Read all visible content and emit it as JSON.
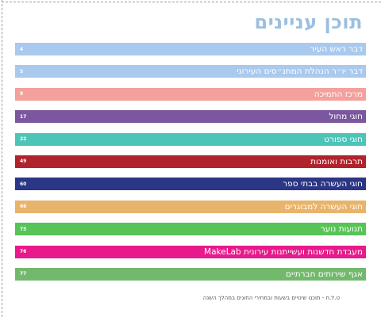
{
  "document": {
    "title": "תוכן עניינים",
    "footnote": "ט.ל.ח - תוכנו שינויים בשעות ובמחירי החוגים במהלך השנה"
  },
  "toc": [
    {
      "label": "דבר ראש העיר",
      "page": "4",
      "color": "#a9c9ee"
    },
    {
      "label": "דבר יו״ר הנהלת המתנ״סים העירוני",
      "page": "5",
      "color": "#a9c9ee"
    },
    {
      "label": "מרכז התמיכה",
      "page": "8",
      "color": "#f4a09c"
    },
    {
      "label": "חוגי מחול",
      "page": "17",
      "color": "#7b579f"
    },
    {
      "label": "חוגי ספורט",
      "page": "22",
      "color": "#4cc4b8"
    },
    {
      "label": "תרבות ואומנות",
      "page": "49",
      "color": "#b0232d"
    },
    {
      "label": "חוגי העשרה בבתי ספר",
      "page": "60",
      "color": "#2b3685"
    },
    {
      "label": "חוגי העשרה למבוגרים",
      "page": "66",
      "color": "#e8b46b"
    },
    {
      "label": "תנועות נוער",
      "page": "75",
      "color": "#58c357"
    },
    {
      "label": "מעבדת חדשנות ועשייתנות עירונית MakeLab",
      "page": "76",
      "color": "#e8198b"
    },
    {
      "label": "אגף שירותים חברתיים",
      "page": "77",
      "color": "#72b96e"
    }
  ]
}
